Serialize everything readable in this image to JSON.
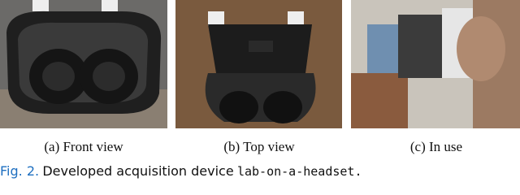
{
  "figure": {
    "subfigures": [
      {
        "caption": "(a) Front view"
      },
      {
        "caption": "(b) Top view"
      },
      {
        "caption": "(c) In use"
      }
    ],
    "caption": {
      "label": "Fig. 2.",
      "text": "Developed acquisition device",
      "code": "lab-on-a-headset."
    }
  }
}
